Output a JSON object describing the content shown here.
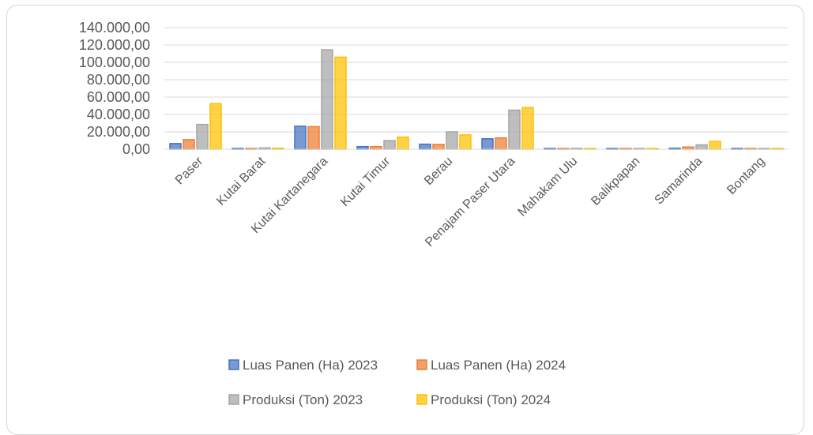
{
  "chart_data": {
    "type": "bar",
    "categories": [
      "Paser",
      "Kutai Barat",
      "Kutai Kartanegara",
      "Kutai Timur",
      "Berau",
      "Penajam Paser Utara",
      "Mahakam Ulu",
      "Balikpapan",
      "Samarinda",
      "Bontang"
    ],
    "series": [
      {
        "name": "Luas Panen (Ha) 2023",
        "color": "#4472c4",
        "values": [
          6500,
          600,
          26500,
          3000,
          5800,
          12000,
          600,
          500,
          1200,
          500
        ]
      },
      {
        "name": "Luas Panen (Ha) 2024",
        "color": "#ed7d31",
        "values": [
          11000,
          500,
          26000,
          3000,
          5500,
          13000,
          500,
          300,
          2500,
          100
        ]
      },
      {
        "name": "Produksi (Ton) 2023",
        "color": "#a5a5a5",
        "values": [
          28500,
          1500,
          114500,
          10000,
          20000,
          45000,
          1000,
          500,
          5000,
          800
        ]
      },
      {
        "name": "Produksi (Ton) 2024",
        "color": "#ffc000",
        "values": [
          52500,
          1200,
          106000,
          14000,
          16500,
          48000,
          800,
          300,
          9000,
          100
        ]
      }
    ],
    "yticks": [
      "0,00",
      "20.000,00",
      "40.000,00",
      "60.000,00",
      "80.000,00",
      "100.000,00",
      "120.000,00",
      "140.000,00"
    ],
    "ylim": [
      0,
      140000
    ],
    "grid": true,
    "legend_position": "bottom"
  }
}
